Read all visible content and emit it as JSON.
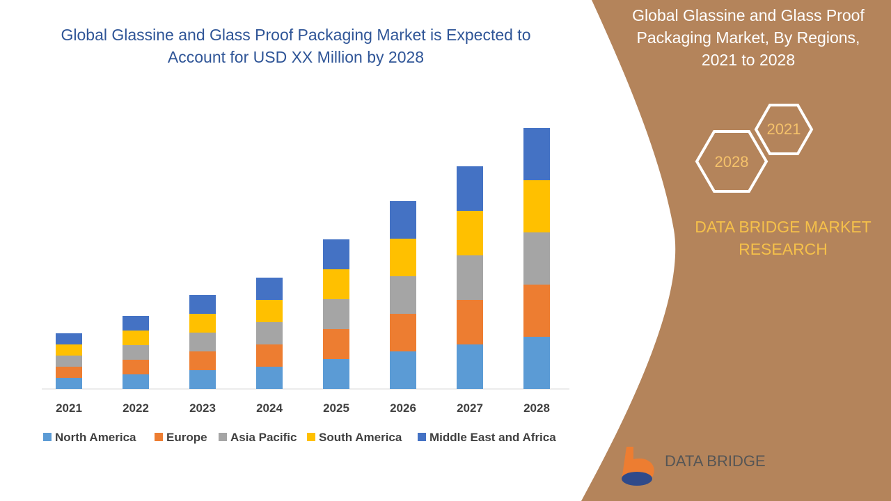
{
  "chart_data": {
    "type": "bar",
    "stacked": true,
    "title": "Global Glassine and Glass Proof Packaging Market is Expected to Account for USD XX Million by 2028",
    "categories": [
      "2021",
      "2022",
      "2023",
      "2024",
      "2025",
      "2026",
      "2027",
      "2028"
    ],
    "series": [
      {
        "name": "North America",
        "color": "#5b9bd5",
        "values": [
          16,
          21,
          27,
          32,
          43,
          54,
          64,
          75
        ]
      },
      {
        "name": "Europe",
        "color": "#ed7d31",
        "values": [
          16,
          21,
          27,
          32,
          43,
          54,
          64,
          75
        ]
      },
      {
        "name": "Asia Pacific",
        "color": "#a5a5a5",
        "values": [
          16,
          21,
          27,
          32,
          43,
          54,
          64,
          75
        ]
      },
      {
        "name": "South America",
        "color": "#ffc000",
        "values": [
          16,
          21,
          27,
          32,
          43,
          54,
          64,
          75
        ]
      },
      {
        "name": "Middle East and Africa",
        "color": "#4472c4",
        "values": [
          16,
          21,
          27,
          32,
          43,
          54,
          64,
          75
        ]
      }
    ]
  },
  "panel": {
    "title": "Global Glassine and Glass Proof Packaging Market, By Regions, 2021 to 2028",
    "hex_start": "2021",
    "hex_end": "2028",
    "brand": "DATA BRIDGE MARKET RESEARCH",
    "logo": "DATA BRIDGE"
  }
}
